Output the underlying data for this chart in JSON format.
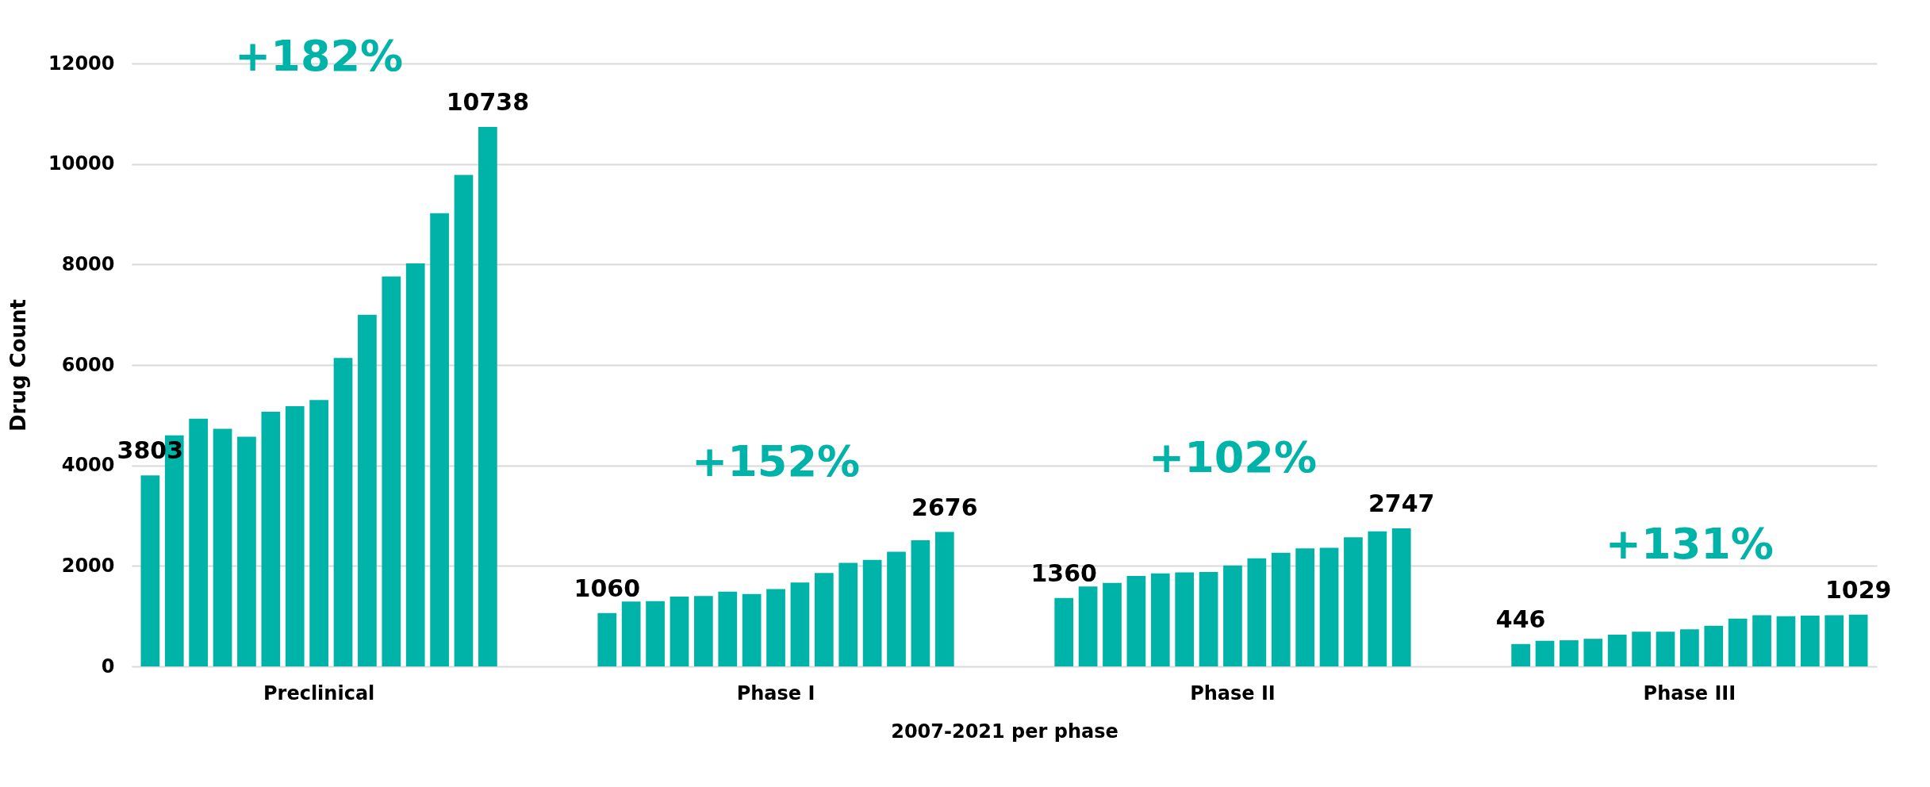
{
  "chart_data": {
    "type": "bar",
    "xlabel": "2007-2021 per phase",
    "ylabel": "Drug Count",
    "categories": [
      "Preclinical",
      "Phase I",
      "Phase II",
      "Phase III"
    ],
    "ylim": [
      0,
      12000
    ],
    "yticks": [
      0,
      2000,
      4000,
      6000,
      8000,
      10000,
      12000
    ],
    "grid": "y",
    "series": [
      {
        "color": "#00b3a8",
        "values": [
          3803,
          1060,
          1360,
          446
        ],
        "value_labels": [
          "3803",
          "1060",
          "1360",
          "446"
        ]
      },
      {
        "color": "#00b3a8",
        "values": [
          4600,
          1290,
          1590,
          510
        ]
      },
      {
        "color": "#00b3a8",
        "values": [
          4930,
          1300,
          1660,
          520
        ]
      },
      {
        "color": "#00b3a8",
        "values": [
          4730,
          1390,
          1800,
          550
        ]
      },
      {
        "color": "#00b3a8",
        "values": [
          4570,
          1400,
          1850,
          630
        ]
      },
      {
        "color": "#00b3a8",
        "values": [
          5070,
          1490,
          1870,
          690
        ]
      },
      {
        "color": "#00b3a8",
        "values": [
          5180,
          1440,
          1880,
          690
        ]
      },
      {
        "color": "#00b3a8",
        "values": [
          5300,
          1540,
          2010,
          740
        ]
      },
      {
        "color": "#00b3a8",
        "values": [
          6140,
          1670,
          2150,
          810
        ]
      },
      {
        "color": "#00b3a8",
        "values": [
          7000,
          1860,
          2260,
          950
        ]
      },
      {
        "color": "#00b3a8",
        "values": [
          7760,
          2060,
          2350,
          1020
        ]
      },
      {
        "color": "#00b3a8",
        "values": [
          8020,
          2120,
          2360,
          1000
        ]
      },
      {
        "color": "#00b3a8",
        "values": [
          9020,
          2280,
          2570,
          1010
        ]
      },
      {
        "color": "#00b3a8",
        "values": [
          9780,
          2510,
          2690,
          1020
        ]
      },
      {
        "color": "#00b3a8",
        "values": [
          10738,
          2676,
          2747,
          1029
        ],
        "value_labels": [
          "10738",
          "2676",
          "2747",
          "1029"
        ]
      }
    ],
    "annotations": [
      "+182%",
      "+152%",
      "+102%",
      "+131%"
    ]
  }
}
